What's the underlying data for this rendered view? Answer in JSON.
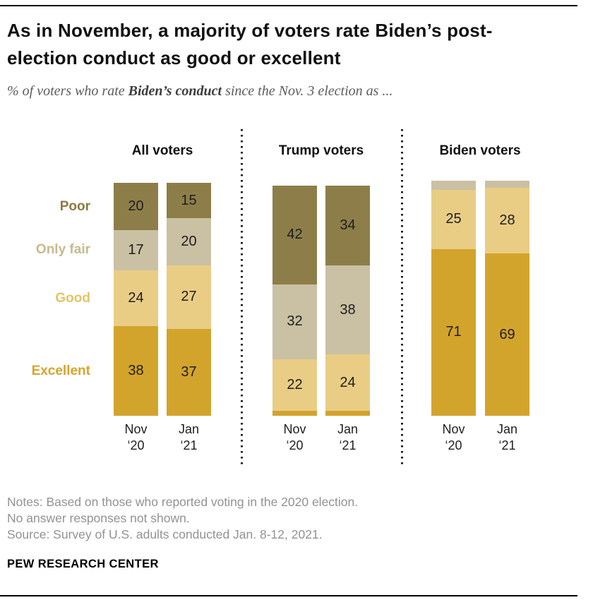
{
  "header": {
    "title": "As in November, a majority of voters rate Biden’s post-election conduct as good or excellent",
    "subtitle_prefix": "% of voters who rate ",
    "subtitle_bold": "Biden’s conduct",
    "subtitle_suffix": " since the Nov. 3 election as ..."
  },
  "chart_data": {
    "type": "bar",
    "subtype": "stacked_vertical_percent_columns",
    "unit": "%",
    "value_axis_shown": false,
    "categories": [
      "Poor",
      "Only fair",
      "Good",
      "Excellent"
    ],
    "category_fill_colors": {
      "Poor": "#8d7e49",
      "Only fair": "#cac0a3",
      "Good": "#e9cd85",
      "Excellent": "#d3a42c"
    },
    "category_label_colors": {
      "Poor": "#8b7b41",
      "Only fair": "#c6ba8e",
      "Good": "#e3c468",
      "Excellent": "#d6a52a"
    },
    "groups": [
      {
        "label": "All voters",
        "columns": [
          {
            "period": "Nov ‘20",
            "values": {
              "Poor": 20,
              "Only fair": 17,
              "Good": 24,
              "Excellent": 38
            },
            "unlabeled": []
          },
          {
            "period": "Jan ‘21",
            "values": {
              "Poor": 15,
              "Only fair": 20,
              "Good": 27,
              "Excellent": 37
            },
            "unlabeled": []
          }
        ]
      },
      {
        "label": "Trump voters",
        "columns": [
          {
            "period": "Nov ‘20",
            "values": {
              "Poor": 42,
              "Only fair": 32,
              "Good": 22,
              "Excellent": 2
            },
            "unlabeled": [
              "Excellent"
            ]
          },
          {
            "period": "Jan ‘21",
            "values": {
              "Poor": 34,
              "Only fair": 38,
              "Good": 24,
              "Excellent": 2
            },
            "unlabeled": [
              "Excellent"
            ]
          }
        ]
      },
      {
        "label": "Biden voters",
        "columns": [
          {
            "period": "Nov ‘20",
            "values": {
              "Poor": 0,
              "Only fair": 4,
              "Good": 25,
              "Excellent": 71
            },
            "unlabeled": [
              "Only fair"
            ]
          },
          {
            "period": "Jan ‘21",
            "values": {
              "Poor": 0,
              "Only fair": 3,
              "Good": 28,
              "Excellent": 69
            },
            "unlabeled": [
              "Only fair"
            ]
          }
        ]
      }
    ]
  },
  "notes": {
    "line1": "Notes: Based on those who reported voting in the 2020 election.",
    "line2": "No answer responses not shown.",
    "line3": "Source: Survey of U.S. adults conducted Jan. 8-12, 2021."
  },
  "footer": {
    "brand": "PEW RESEARCH CENTER"
  }
}
